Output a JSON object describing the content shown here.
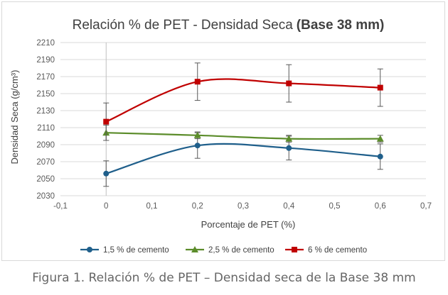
{
  "caption": "Figura 1. Relación % de PET – Densidad seca de la Base 38 mm",
  "chart_data": {
    "type": "line",
    "title": "Relación % de PET - Densidad Seca",
    "title_bold": "(Base 38 mm)",
    "xlabel": "Porcentaje de PET (%)",
    "ylabel": "Densidad Seca (g/cm³)",
    "xlim": [
      -0.1,
      0.7
    ],
    "ylim": [
      2030,
      2210
    ],
    "x_ticks": [
      -0.1,
      0,
      0.1,
      0.2,
      0.3,
      0.4,
      0.5,
      0.6,
      0.7
    ],
    "x_tick_labels": [
      "-0,1",
      "0",
      "0,1",
      "0,2",
      "0,3",
      "0,4",
      "0,5",
      "0,6",
      "0,7"
    ],
    "y_ticks": [
      2030,
      2050,
      2070,
      2090,
      2110,
      2130,
      2150,
      2170,
      2190,
      2210
    ],
    "y_tick_labels": [
      "2030",
      "2050",
      "2070",
      "2090",
      "2110",
      "2130",
      "2150",
      "2170",
      "2190",
      "2210"
    ],
    "grid": "horizontal",
    "legend_position": "bottom",
    "smooth": true,
    "series": [
      {
        "name": "1,5 % de cemento",
        "color": "#1f5f8b",
        "marker": "circle",
        "x": [
          0,
          0.2,
          0.4,
          0.6
        ],
        "y": [
          2056,
          2089,
          2086,
          2076
        ],
        "error": [
          15,
          15,
          14,
          15
        ]
      },
      {
        "name": "2,5 % de cemento",
        "color": "#5b8c2a",
        "marker": "triangle",
        "x": [
          0,
          0.2,
          0.4,
          0.6
        ],
        "y": [
          2104,
          2101,
          2097,
          2097
        ],
        "error": [
          9,
          4,
          4,
          4
        ]
      },
      {
        "name": "6 % de cemento",
        "color": "#c00000",
        "marker": "square",
        "x": [
          0,
          0.2,
          0.4,
          0.6
        ],
        "y": [
          2117,
          2164,
          2162,
          2157
        ],
        "error": [
          22,
          22,
          22,
          22
        ]
      }
    ]
  }
}
